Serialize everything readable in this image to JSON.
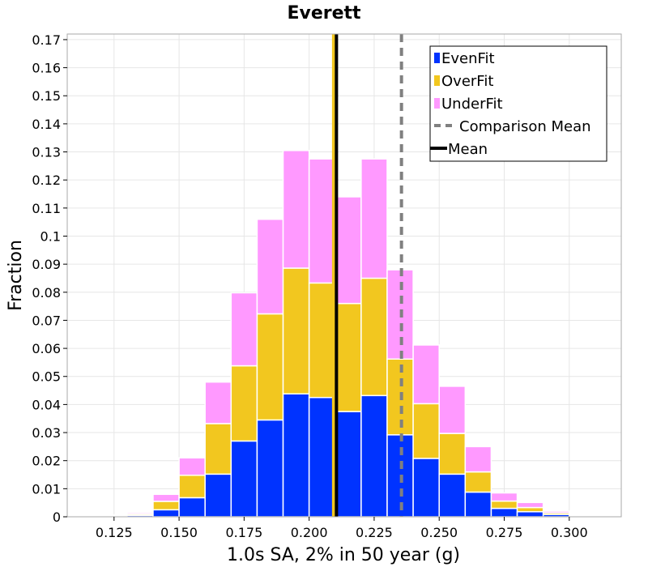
{
  "chart_data": {
    "type": "bar",
    "stacked": true,
    "title": "Everett",
    "xlabel": "1.0s SA, 2% in 50 year (g)",
    "ylabel": "Fraction",
    "xlim": [
      0.107,
      0.32
    ],
    "ylim": [
      0,
      0.172
    ],
    "x_ticks": [
      "0.125",
      "0.150",
      "0.175",
      "0.200",
      "0.225",
      "0.250",
      "0.275",
      "0.300"
    ],
    "y_ticks": [
      "0",
      "0.01",
      "0.02",
      "0.03",
      "0.04",
      "0.05",
      "0.06",
      "0.07",
      "0.08",
      "0.09",
      "0.1",
      "0.11",
      "0.12",
      "0.13",
      "0.14",
      "0.15",
      "0.16",
      "0.17"
    ],
    "grid": true,
    "legend_position": "top-right",
    "bin_width": 0.01,
    "bin_centers": [
      0.125,
      0.135,
      0.145,
      0.155,
      0.165,
      0.175,
      0.185,
      0.195,
      0.205,
      0.215,
      0.225,
      0.235,
      0.245,
      0.255,
      0.265,
      0.275,
      0.285,
      0.295,
      0.305,
      0.315
    ],
    "series": [
      {
        "name": "EvenFit",
        "color": "#0033ff",
        "values": [
          0.0002,
          0.0005,
          0.0025,
          0.0068,
          0.0152,
          0.027,
          0.0345,
          0.0438,
          0.0425,
          0.0375,
          0.0432,
          0.0292,
          0.0208,
          0.0152,
          0.0088,
          0.003,
          0.0018,
          0.0008,
          0.0003,
          0.0001
        ]
      },
      {
        "name": "OverFit",
        "color": "#f2c71f",
        "values": [
          0.0002,
          0.0005,
          0.003,
          0.008,
          0.018,
          0.0268,
          0.0378,
          0.0448,
          0.0408,
          0.0385,
          0.0418,
          0.027,
          0.0195,
          0.0145,
          0.0072,
          0.0026,
          0.0015,
          0.0006,
          0.0002,
          0.0001
        ]
      },
      {
        "name": "UnderFit",
        "color": "#ff99ff",
        "values": [
          0.0002,
          0.0005,
          0.0025,
          0.0062,
          0.0148,
          0.026,
          0.0337,
          0.0419,
          0.0442,
          0.038,
          0.0425,
          0.0318,
          0.0209,
          0.0168,
          0.009,
          0.0029,
          0.0018,
          0.0006,
          0.0002,
          0.0001
        ]
      }
    ],
    "mean": {
      "name": "Mean",
      "value": 0.2105,
      "color": "#000000"
    },
    "comparison_mean": {
      "name": "Comparison Mean",
      "value": 0.2355,
      "color": "#808080"
    }
  }
}
